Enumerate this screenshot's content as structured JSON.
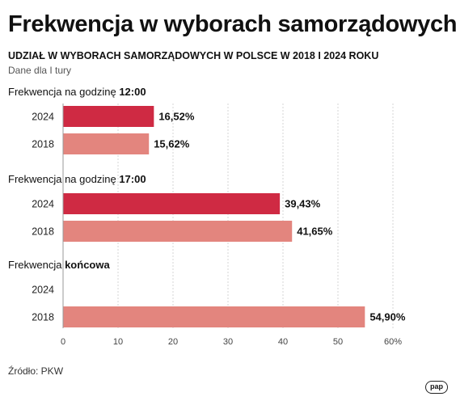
{
  "header": {
    "title": "Frekwencja w wyborach samorządowych",
    "subtitle": "UDZIAŁ W WYBORACH SAMORZĄDOWYCH W POLSCE W 2018 I 2024 ROKU",
    "note": "Dane dla I tury"
  },
  "source": "Źródło: PKW",
  "logo": "pap",
  "colors": {
    "y2024": "#cf2a43",
    "y2018": "#e3857e",
    "grid": "#d6d6d6"
  },
  "chart_data": {
    "type": "bar",
    "orientation": "horizontal",
    "xlim": [
      0,
      60
    ],
    "xticks": [
      "0",
      "10",
      "20",
      "30",
      "40",
      "50",
      "60%"
    ],
    "grid": true,
    "groups": [
      {
        "label_prefix": "Frekwencja na godzinę ",
        "label_bold": "12:00",
        "bars": [
          {
            "year": "2024",
            "value": 16.52,
            "label": "16,52%"
          },
          {
            "year": "2018",
            "value": 15.62,
            "label": "15,62%"
          }
        ]
      },
      {
        "label_prefix": "Frekwencja na godzinę ",
        "label_bold": "17:00",
        "bars": [
          {
            "year": "2024",
            "value": 39.43,
            "label": "39,43%"
          },
          {
            "year": "2018",
            "value": 41.65,
            "label": "41,65%"
          }
        ]
      },
      {
        "label_prefix": "Frekwencja ",
        "label_bold": "końcowa",
        "bars": [
          {
            "year": "2024",
            "value": null,
            "label": ""
          },
          {
            "year": "2018",
            "value": 54.9,
            "label": "54,90%"
          }
        ]
      }
    ]
  }
}
